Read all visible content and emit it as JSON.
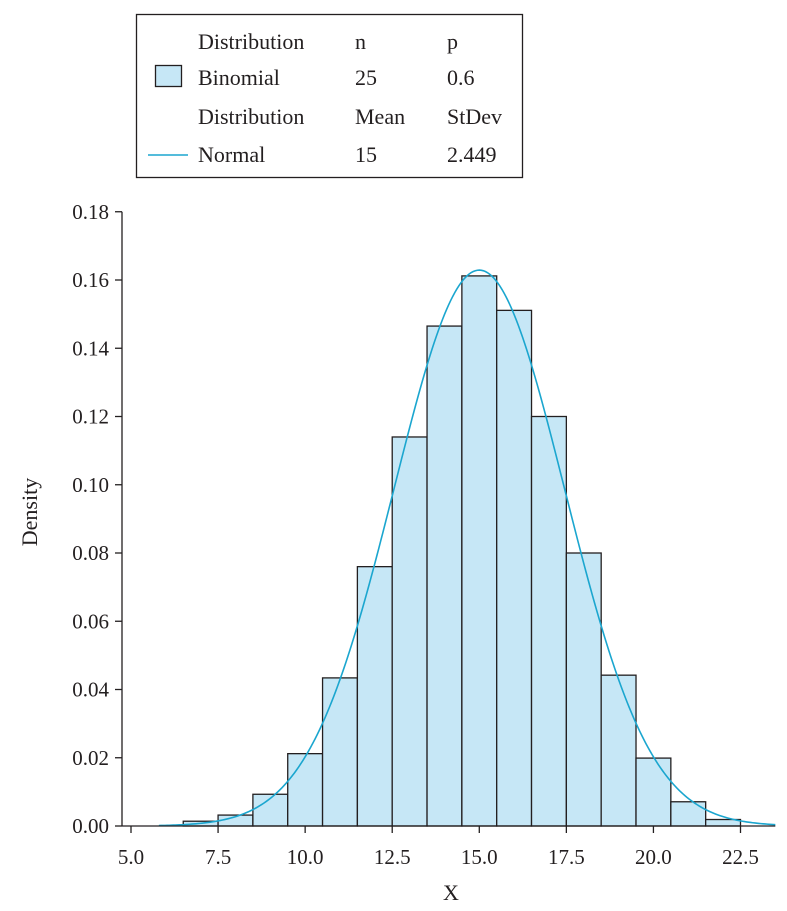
{
  "chart_data": {
    "type": "bar",
    "title": "",
    "xlabel": "X",
    "ylabel": "Density",
    "xlim": [
      5.0,
      23.5
    ],
    "ylim": [
      0,
      0.18
    ],
    "x_ticks": [
      "5.0",
      "7.5",
      "10.0",
      "12.5",
      "15.0",
      "17.5",
      "20.0",
      "22.5"
    ],
    "y_ticks": [
      "0.00",
      "0.02",
      "0.04",
      "0.06",
      "0.08",
      "0.10",
      "0.12",
      "0.14",
      "0.16",
      "0.18"
    ],
    "grid": false,
    "legend_position": "top-left",
    "series": [
      {
        "name": "Binomial",
        "kind": "histogram",
        "params": {
          "n": 25,
          "p": 0.6
        },
        "color": "#c6e7f6",
        "edge_color": "#231f20",
        "x": [
          7,
          8,
          9,
          10,
          11,
          12,
          13,
          14,
          15,
          16,
          17,
          18,
          19,
          20,
          21,
          22
        ],
        "values": [
          0.0014,
          0.0032,
          0.0093,
          0.0212,
          0.0434,
          0.076,
          0.114,
          0.1465,
          0.1612,
          0.1511,
          0.12,
          0.08,
          0.0442,
          0.0199,
          0.0071,
          0.0019
        ]
      },
      {
        "name": "Normal",
        "kind": "density_curve",
        "params": {
          "mean": 15,
          "stdev": 2.449
        },
        "color": "#1ba6cf"
      }
    ]
  },
  "legend": {
    "rows": [
      {
        "label": "Distribution",
        "col1": "n",
        "col2": "p"
      },
      {
        "label": "Binomial",
        "col1": "25",
        "col2": "0.6"
      },
      {
        "label": "Distribution",
        "col1": "Mean",
        "col2": "StDev"
      },
      {
        "label": "Normal",
        "col1": "15",
        "col2": "2.449"
      }
    ]
  }
}
